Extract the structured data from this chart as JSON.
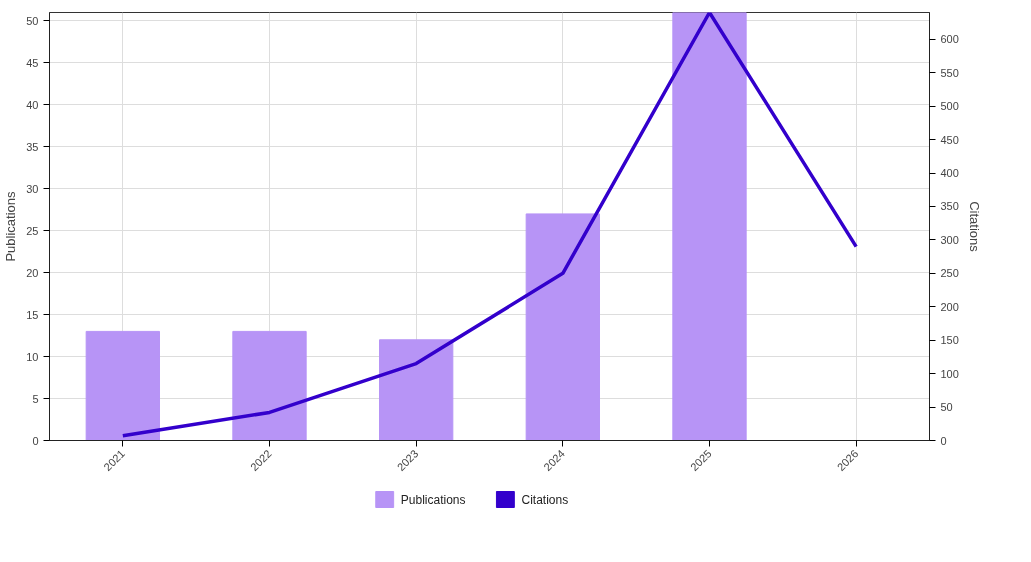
{
  "chart_data": {
    "type": "bar",
    "categories": [
      "2021",
      "2022",
      "2023",
      "2024",
      "2025",
      "2026"
    ],
    "ylabel": "Publications",
    "y2label": "Citations",
    "ylim": [
      0,
      51
    ],
    "yticks": [
      0,
      5,
      10,
      15,
      20,
      25,
      30,
      35,
      40,
      45,
      50
    ],
    "y2lim": [
      0,
      640
    ],
    "y2ticks": [
      0,
      50,
      100,
      150,
      200,
      250,
      300,
      350,
      400,
      450,
      500,
      550,
      600
    ],
    "series": [
      {
        "name": "Publications",
        "color": "#b794f6",
        "values": [
          13,
          13,
          12,
          27,
          51,
          null
        ]
      },
      {
        "name": "Citations",
        "type": "line",
        "axis": "y2",
        "color": "#3300cc",
        "values": [
          7,
          42,
          115,
          250,
          640,
          290
        ]
      }
    ],
    "grid": true,
    "legend": "bottom",
    "marker": "none",
    "line_style": "solid"
  }
}
